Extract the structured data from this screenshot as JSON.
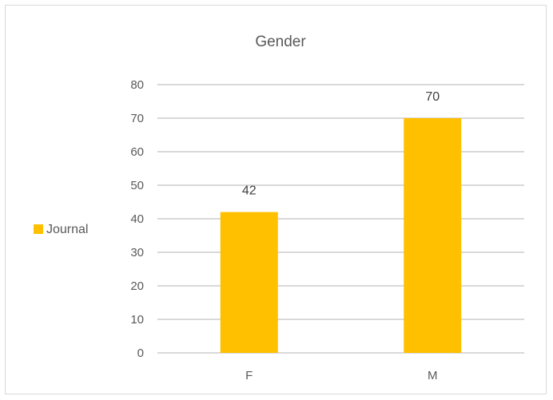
{
  "chart_data": {
    "type": "bar",
    "title": "Gender",
    "categories": [
      "F",
      "M"
    ],
    "series": [
      {
        "name": "Journal",
        "values": [
          42,
          70
        ],
        "color": "#ffc000"
      }
    ],
    "ylim": [
      0,
      80
    ],
    "yticks": [
      0,
      10,
      20,
      30,
      40,
      50,
      60,
      70,
      80
    ],
    "grid": true,
    "legend_position": "left",
    "data_labels": [
      "42",
      "70"
    ]
  }
}
